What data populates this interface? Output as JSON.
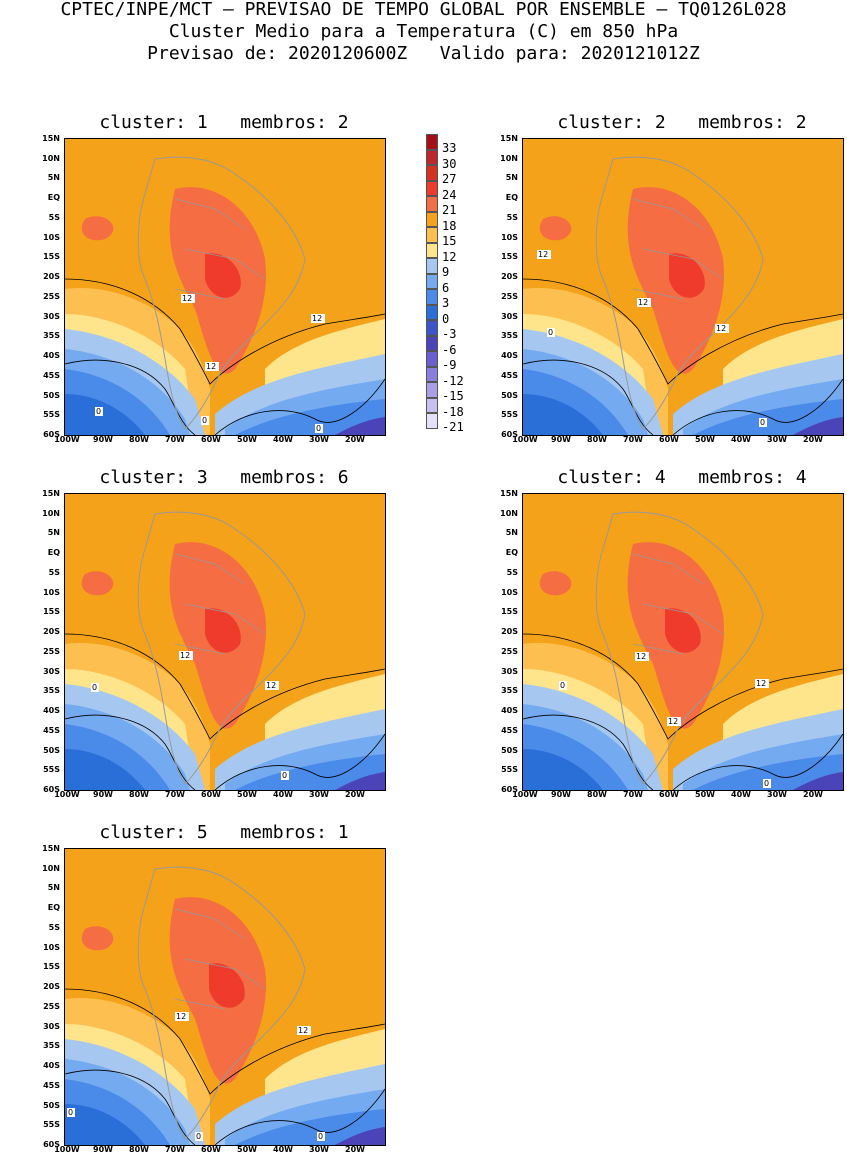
{
  "header": {
    "line1": "CPTEC/INPE/MCT – PREVISAO DE TEMPO GLOBAL POR ENSEMBLE – TQ0126L028",
    "line2": "Cluster Medio para a Temperatura (C) em 850 hPa",
    "line3": "Previsao de: 2020120600Z   Valido para: 2020121012Z"
  },
  "panels": [
    {
      "title": "cluster: 1   membros: 2",
      "labels": [
        "12",
        "12",
        "12",
        "0",
        "0",
        "0"
      ]
    },
    {
      "title": "cluster: 2   membros: 2",
      "labels": [
        "12",
        "12",
        "12",
        "0",
        "0"
      ]
    },
    {
      "title": "cluster: 3   membros: 6",
      "labels": [
        "12",
        "12",
        "0",
        "0"
      ]
    },
    {
      "title": "cluster: 4   membros: 4",
      "labels": [
        "12",
        "12",
        "12",
        "0",
        "0"
      ]
    },
    {
      "title": "cluster: 5   membros: 1",
      "labels": [
        "12",
        "12",
        "0",
        "0",
        "0"
      ]
    }
  ],
  "lat_ticks": [
    "15N",
    "10N",
    "5N",
    "EQ",
    "5S",
    "10S",
    "15S",
    "20S",
    "25S",
    "30S",
    "35S",
    "40S",
    "45S",
    "50S",
    "55S",
    "60S"
  ],
  "lon_ticks": [
    "100W",
    "90W",
    "80W",
    "70W",
    "60W",
    "50W",
    "40W",
    "30W",
    "20W"
  ],
  "colorbar": {
    "labels": [
      "33",
      "30",
      "27",
      "24",
      "21",
      "18",
      "15",
      "12",
      "9",
      "6",
      "3",
      "0",
      "-3",
      "-6",
      "-9",
      "-12",
      "-15",
      "-18",
      "-21"
    ],
    "colors": [
      "#a50f15",
      "#c0272d",
      "#d7301f",
      "#ef3b2c",
      "#f46d43",
      "#f4a21a",
      "#fdbf4f",
      "#fee48a",
      "#a6c8f0",
      "#74aaf0",
      "#4a8ae8",
      "#2a6fd8",
      "#3a56c8",
      "#4a44b8",
      "#6a5fd0",
      "#8a7fe0",
      "#a89fe8",
      "#c8c0f0",
      "#e4e0f8"
    ]
  }
}
